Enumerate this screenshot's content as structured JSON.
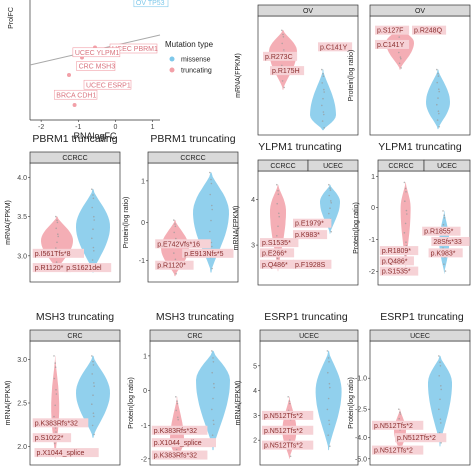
{
  "colors": {
    "missense": "#7ec8ea",
    "truncating": "#f2a0a8",
    "label_fill": "#f6d2d6",
    "label_text": "#8b2f2f",
    "strip_fill": "#d9d9d9",
    "frame": "#333333"
  },
  "chart_data": [
    {
      "type": "scatter",
      "xlabel": "RNAlogFC",
      "ylabel": "ProlFC",
      "x_ticks": [
        "-2",
        "-1",
        "0",
        "1"
      ],
      "xlim": [
        -2.3,
        1.2
      ],
      "ylim": [
        -2.4,
        2.4
      ],
      "legend": {
        "title": "Mutation type",
        "entries": [
          "missense",
          "truncating"
        ],
        "position": "right"
      },
      "series": [
        {
          "name": "truncating",
          "x": [
            -1.6,
            -1.25,
            -0.9,
            -0.85,
            -0.55,
            -1.1,
            -0.3,
            -0.7
          ],
          "y": [
            -1.3,
            -0.6,
            0.1,
            -0.2,
            0.5,
            -1.8,
            0.2,
            -1.0
          ]
        },
        {
          "name": "missense",
          "x": [
            0.55
          ],
          "y": [
            2.2
          ]
        }
      ],
      "trend_line": {
        "x": [
          -2.3,
          1.2
        ],
        "y": [
          -0.2,
          1.0
        ]
      },
      "labels": [
        {
          "text": "OV TP53",
          "x": 0.55,
          "y": 2.25
        },
        {
          "text": "UCEC PBRM1",
          "x": -0.2,
          "y": 0.4
        },
        {
          "text": "UCEC YLPM1",
          "x": -1.2,
          "y": 0.25
        },
        {
          "text": "CRC MSH3",
          "x": -1.1,
          "y": -0.3
        },
        {
          "text": "UCEC ESRP1",
          "x": -0.9,
          "y": -1.05
        },
        {
          "text": "BRCA CDH1",
          "x": -1.7,
          "y": -1.45
        }
      ]
    },
    {
      "type": "violin",
      "strip": "OV",
      "ylabel": "mRNA(FPKM)",
      "categories": [
        "truncating",
        "missense"
      ],
      "labels": [
        "p.C141Y",
        "p.R273C",
        "p.R175H"
      ]
    },
    {
      "type": "violin",
      "strip": "OV",
      "ylabel": "Protein(log ratio)",
      "categories": [
        "truncating",
        "missense"
      ],
      "labels": [
        "p.S127F",
        "p.R248Q",
        "p.C141Y"
      ]
    },
    {
      "type": "violin",
      "title": "PBRM1 truncating",
      "strip": "CCRCC",
      "ylabel": "mRNA(FPKM)",
      "y_ticks": [
        "3.0",
        "3.5",
        "4.0"
      ],
      "ylim": [
        2.8,
        4.2
      ],
      "categories": [
        "truncating",
        "missense"
      ],
      "labels": [
        "p.I561Tfs*8",
        "p.R1120*",
        "p.S1621del"
      ]
    },
    {
      "type": "violin",
      "title": "PBRM1 truncating",
      "strip": "CCRCC",
      "ylabel": "Protein(log ratio)",
      "y_ticks": [
        "-1",
        "0",
        "1"
      ],
      "ylim": [
        -1.3,
        1.4
      ],
      "categories": [
        "truncating",
        "missense"
      ],
      "labels": [
        "p.E742Vfs*16",
        "p.E913Nfs*5",
        "p.R1120*"
      ]
    },
    {
      "type": "violin",
      "title": "YLPM1 truncating",
      "strips": [
        "CCRCC",
        "UCEC"
      ],
      "ylabel": "mRNA(FPKM)",
      "y_ticks": [
        "3",
        "4"
      ],
      "ylim": [
        2.4,
        4.5
      ],
      "categories": [
        "truncating",
        "missense"
      ],
      "labels": [
        "p.E1979*",
        "p.K983*",
        "p.S1535*",
        "p.E266*",
        "p.Q486*",
        "p.F1928S"
      ]
    },
    {
      "type": "violin",
      "title": "YLPM1 truncating",
      "strips": [
        "CCRCC",
        "UCEC"
      ],
      "ylabel": "Protein(log ratio)",
      "y_ticks": [
        "-2",
        "-1",
        "0",
        "1"
      ],
      "ylim": [
        -2.3,
        1.4
      ],
      "categories": [
        "truncating",
        "missense"
      ],
      "labels": [
        "p.R1855*",
        "28Sfs*33",
        "p.K983*",
        "p.R1809*",
        "p.Q486*",
        "p.S1535*"
      ]
    },
    {
      "type": "violin",
      "title": "MSH3 truncating",
      "strip": "CRC",
      "ylabel": "mRNA(FPKM)",
      "y_ticks": [
        "2.0",
        "2.5",
        "3.0"
      ],
      "ylim": [
        1.8,
        3.1
      ],
      "categories": [
        "truncating",
        "missense"
      ],
      "labels": [
        "p.K383Rfs*32",
        "p.S1022*",
        "p.X1044_splice"
      ]
    },
    {
      "type": "violin",
      "title": "MSH3 truncating",
      "strip": "CRC",
      "ylabel": "Protein(log ratio)",
      "y_ticks": [
        "-2",
        "-1",
        "0",
        "1"
      ],
      "ylim": [
        -2.4,
        1.3
      ],
      "categories": [
        "truncating",
        "missense"
      ],
      "labels": [
        "p.K383Rfs*32",
        "p.X1044_splice",
        "p.K383Rfs*32"
      ]
    },
    {
      "type": "violin",
      "title": "ESRP1 truncating",
      "strip": "UCEC",
      "ylabel": "mRNA(FPKM)",
      "y_ticks": [
        "2",
        "3",
        "4",
        "5"
      ],
      "ylim": [
        1.5,
        5.5
      ],
      "categories": [
        "truncating",
        "missense"
      ],
      "labels": [
        "p.N512Tfs*2",
        "p.N512Tfs*2",
        "p.N512Tfs*2"
      ]
    },
    {
      "type": "violin",
      "title": "ESRP1 truncating",
      "strip": "UCEC",
      "ylabel": "Protein(log ratio)",
      "y_ticks": [
        "-1.0",
        "-2.5",
        "-4.0",
        "-5.0"
      ],
      "ylim": [
        -5.5,
        0.3
      ],
      "categories": [
        "truncating",
        "missense"
      ],
      "labels": [
        "p.N512Tfs*2",
        "p.N512Tfs*2",
        "p.N512Tfs*2"
      ]
    }
  ]
}
